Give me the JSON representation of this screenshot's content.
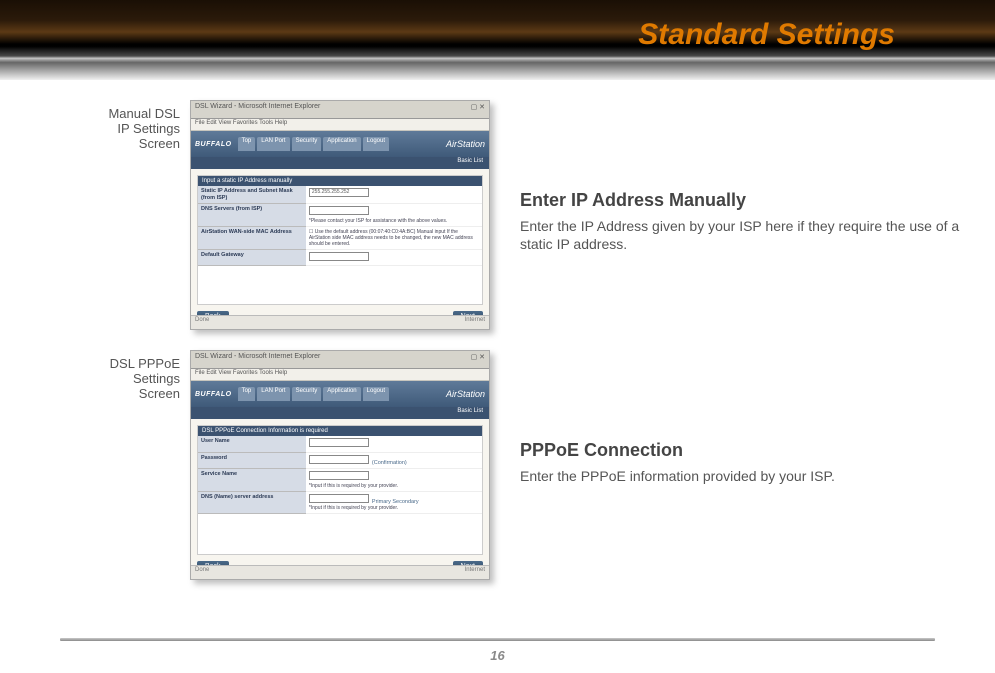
{
  "header": {
    "title": "Standard Settings",
    "title_color": "#e07a00"
  },
  "footer": {
    "page": "16"
  },
  "sections": [
    {
      "caption": [
        "Manual DSL",
        "IP Settings",
        "Screen"
      ],
      "desc_title": "Enter IP Address Manually",
      "desc_body": "Enter the IP Address given by your ISP here if they require the use of a static IP address."
    },
    {
      "caption": [
        "DSL PPPoE",
        "Settings",
        "Screen"
      ],
      "desc_title": "PPPoE Connection",
      "desc_body": "Enter the PPPoE information provided by your ISP."
    }
  ],
  "browser": {
    "title_prefix": "DSL Wizard - Microsoft Internet Explorer",
    "menus": "File   Edit   View   Favorites   Tools   Help",
    "status_left": "Done",
    "status_right": "Internet"
  },
  "router_ui": {
    "logo": "BUFFALO",
    "brand": "AirStation",
    "tabs": [
      "Top",
      "LAN Port",
      "Security",
      "Application"
    ],
    "logout": "Logout",
    "subbar": "Basic List",
    "back": "Back",
    "next": "Next"
  },
  "screen1": {
    "title": "Input a static IP Address manually",
    "rows": [
      {
        "label": "Static IP Address and Subnet Mask (from ISP)",
        "value_input": "255.255.255.252",
        "note": ""
      },
      {
        "label": "DNS Servers (from ISP)",
        "value_input": "",
        "note": "*Please contact your ISP for assistance with the above values."
      },
      {
        "label": "AirStation WAN-side MAC Address",
        "value_input": "",
        "note": "☐ Use the default address (00:07:40:C0:4A:BC)\nManual input\nIf the AirStation side MAC address needs to be changed, the new MAC address should be entered."
      },
      {
        "label": "Default Gateway",
        "value_input": "",
        "note": ""
      }
    ]
  },
  "screen2": {
    "title": "DSL PPPoE Connection Information is required",
    "rows": [
      {
        "label": "User Name",
        "after": ""
      },
      {
        "label": "Password",
        "after": "(Confirmation)"
      },
      {
        "label": "Service Name",
        "after": "",
        "note": "*Input if this is required by your provider."
      },
      {
        "label": "DNS (Name) server address",
        "after": "Primary\nSecondary",
        "note": "*Input if this is required by your provider."
      }
    ]
  }
}
